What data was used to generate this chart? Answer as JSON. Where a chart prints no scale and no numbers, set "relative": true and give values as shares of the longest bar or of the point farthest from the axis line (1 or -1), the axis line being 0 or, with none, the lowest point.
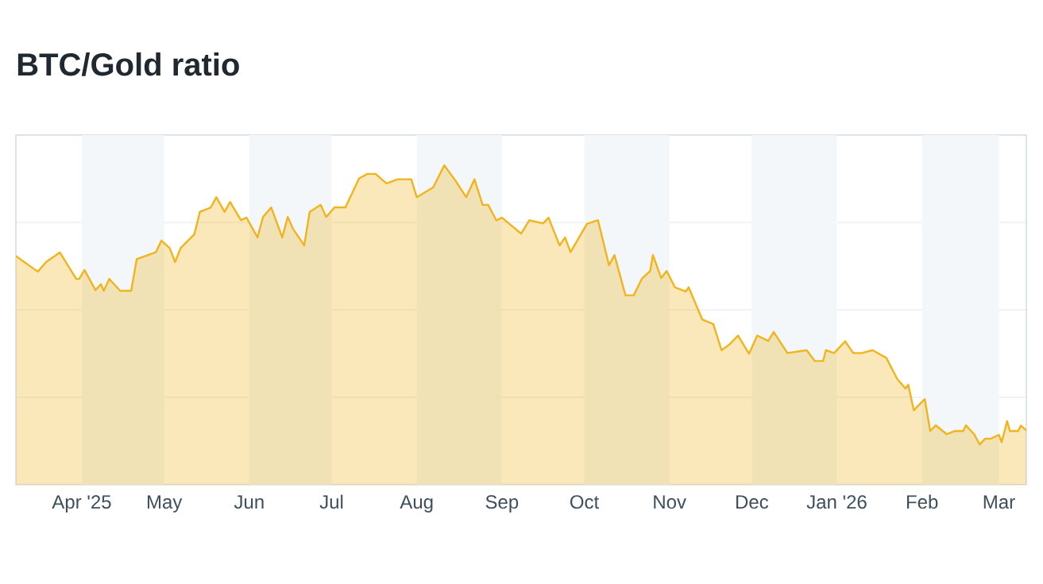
{
  "chart_data": {
    "type": "area",
    "title": "BTC/Gold ratio",
    "relative": true,
    "color": "#f0b41c",
    "grid": "y",
    "tick_labels": "x",
    "xlim": [
      "2025-03-08",
      "2026-03-11"
    ],
    "xticks": [
      {
        "value": "2025-04-01",
        "label": "Apr '25"
      },
      {
        "value": "2025-05-01",
        "label": "May"
      },
      {
        "value": "2025-06-01",
        "label": "Jun"
      },
      {
        "value": "2025-07-01",
        "label": "Jul"
      },
      {
        "value": "2025-08-01",
        "label": "Aug"
      },
      {
        "value": "2025-09-01",
        "label": "Sep"
      },
      {
        "value": "2025-10-01",
        "label": "Oct"
      },
      {
        "value": "2025-11-01",
        "label": "Nov"
      },
      {
        "value": "2025-12-01",
        "label": "Dec"
      },
      {
        "value": "2026-01-01",
        "label": "Jan '26"
      },
      {
        "value": "2026-02-01",
        "label": "Feb"
      },
      {
        "value": "2026-03-01",
        "label": "Mar"
      }
    ],
    "bands": [
      {
        "axis": "x",
        "from": "2025-04-01",
        "to": "2025-05-01",
        "color": "#f3f7f9"
      },
      {
        "axis": "x",
        "from": "2025-06-01",
        "to": "2025-07-01",
        "color": "#f3f7f9"
      },
      {
        "axis": "x",
        "from": "2025-08-01",
        "to": "2025-09-01",
        "color": "#f3f7f9"
      },
      {
        "axis": "x",
        "from": "2025-10-01",
        "to": "2025-11-01",
        "color": "#f3f7f9"
      },
      {
        "axis": "x",
        "from": "2025-12-01",
        "to": "2026-01-01",
        "color": "#f3f7f9"
      },
      {
        "axis": "x",
        "from": "2026-02-01",
        "to": "2026-03-01",
        "color": "#f3f7f9"
      }
    ],
    "x": [
      "2025-03-08",
      "2025-03-16",
      "2025-03-19",
      "2025-03-24",
      "2025-03-30",
      "2025-03-31",
      "2025-04-02",
      "2025-04-06",
      "2025-04-08",
      "2025-04-09",
      "2025-04-11",
      "2025-04-15",
      "2025-04-19",
      "2025-04-21",
      "2025-04-28",
      "2025-04-30",
      "2025-05-03",
      "2025-05-05",
      "2025-05-07",
      "2025-05-12",
      "2025-05-14",
      "2025-05-18",
      "2025-05-20",
      "2025-05-23",
      "2025-05-25",
      "2025-05-29",
      "2025-05-31",
      "2025-06-04",
      "2025-06-06",
      "2025-06-09",
      "2025-06-13",
      "2025-06-15",
      "2025-06-17",
      "2025-06-21",
      "2025-06-23",
      "2025-06-27",
      "2025-06-29",
      "2025-07-02",
      "2025-07-06",
      "2025-07-11",
      "2025-07-14",
      "2025-07-17",
      "2025-07-21",
      "2025-07-25",
      "2025-07-30",
      "2025-08-01",
      "2025-08-07",
      "2025-08-11",
      "2025-08-15",
      "2025-08-19",
      "2025-08-22",
      "2025-08-25",
      "2025-08-27",
      "2025-08-30",
      "2025-09-01",
      "2025-09-08",
      "2025-09-11",
      "2025-09-16",
      "2025-09-18",
      "2025-09-22",
      "2025-09-24",
      "2025-09-26",
      "2025-10-02",
      "2025-10-06",
      "2025-10-10",
      "2025-10-12",
      "2025-10-16",
      "2025-10-19",
      "2025-10-22",
      "2025-10-25",
      "2025-10-26",
      "2025-10-29",
      "2025-10-31",
      "2025-11-03",
      "2025-11-07",
      "2025-11-08",
      "2025-11-13",
      "2025-11-17",
      "2025-11-20",
      "2025-11-23",
      "2025-11-26",
      "2025-11-30",
      "2025-12-03",
      "2025-12-07",
      "2025-12-09",
      "2025-12-14",
      "2025-12-21",
      "2025-12-24",
      "2025-12-27",
      "2025-12-28",
      "2025-12-31",
      "2026-01-04",
      "2026-01-07",
      "2026-01-10",
      "2026-01-14",
      "2026-01-19",
      "2026-01-23",
      "2026-01-26",
      "2026-01-27",
      "2026-01-29",
      "2026-02-02",
      "2026-02-04",
      "2026-02-06",
      "2026-02-10",
      "2026-02-13",
      "2026-02-16",
      "2026-02-17",
      "2026-02-20",
      "2026-02-22",
      "2026-02-24",
      "2026-02-26",
      "2026-03-01",
      "2026-03-02",
      "2026-03-04",
      "2026-03-05",
      "2026-03-08",
      "2026-03-09",
      "2026-03-11"
    ],
    "values": [
      0.716,
      0.667,
      0.697,
      0.727,
      0.644,
      0.644,
      0.672,
      0.609,
      0.628,
      0.607,
      0.644,
      0.607,
      0.607,
      0.706,
      0.728,
      0.764,
      0.741,
      0.697,
      0.741,
      0.784,
      0.854,
      0.868,
      0.9,
      0.854,
      0.885,
      0.828,
      0.836,
      0.774,
      0.838,
      0.868,
      0.774,
      0.838,
      0.8,
      0.749,
      0.854,
      0.876,
      0.838,
      0.868,
      0.868,
      0.959,
      0.973,
      0.973,
      0.943,
      0.956,
      0.956,
      0.9,
      0.931,
      1.0,
      0.953,
      0.9,
      0.956,
      0.876,
      0.876,
      0.827,
      0.836,
      0.786,
      0.828,
      0.818,
      0.836,
      0.749,
      0.774,
      0.728,
      0.817,
      0.828,
      0.687,
      0.719,
      0.593,
      0.593,
      0.645,
      0.669,
      0.719,
      0.647,
      0.669,
      0.618,
      0.605,
      0.618,
      0.517,
      0.503,
      0.421,
      0.44,
      0.467,
      0.41,
      0.467,
      0.45,
      0.478,
      0.412,
      0.421,
      0.387,
      0.387,
      0.421,
      0.412,
      0.449,
      0.412,
      0.412,
      0.421,
      0.397,
      0.331,
      0.301,
      0.313,
      0.233,
      0.268,
      0.168,
      0.186,
      0.158,
      0.168,
      0.168,
      0.186,
      0.158,
      0.126,
      0.144,
      0.144,
      0.156,
      0.133,
      0.199,
      0.168,
      0.168,
      0.185,
      0.17
    ]
  }
}
